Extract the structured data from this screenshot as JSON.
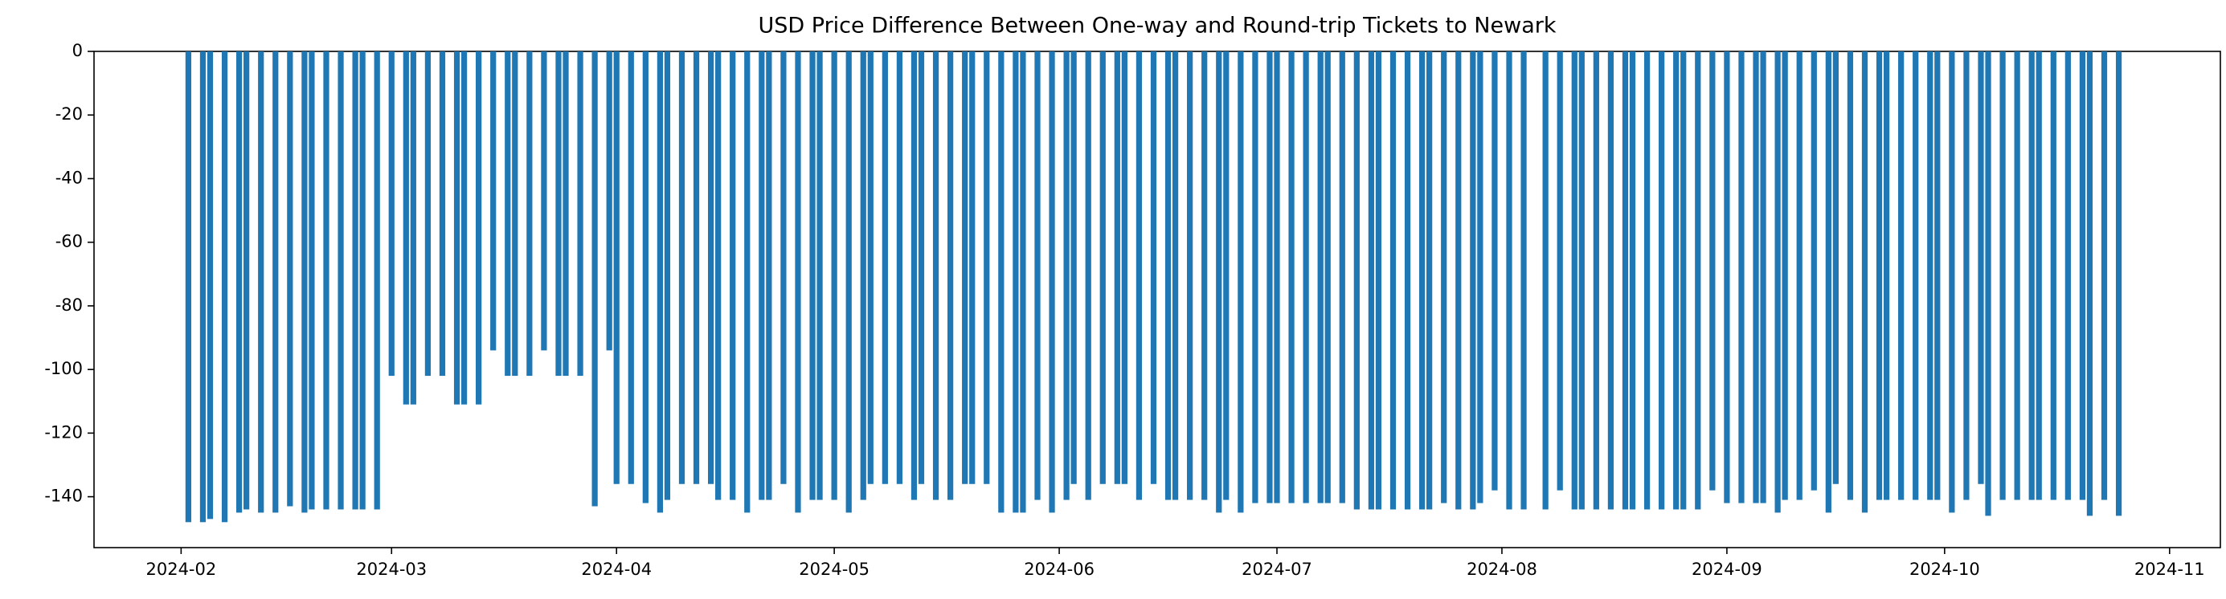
{
  "chart_data": {
    "type": "bar",
    "title": "USD Price Difference Between One-way and Round-trip Tickets to Newark",
    "color": "#1f77b4",
    "x": [
      "2024-02-02",
      "2024-02-04",
      "2024-02-05",
      "2024-02-07",
      "2024-02-09",
      "2024-02-10",
      "2024-02-12",
      "2024-02-14",
      "2024-02-16",
      "2024-02-18",
      "2024-02-19",
      "2024-02-21",
      "2024-02-23",
      "2024-02-25",
      "2024-02-26",
      "2024-02-28",
      "2024-03-01",
      "2024-03-03",
      "2024-03-04",
      "2024-03-06",
      "2024-03-08",
      "2024-03-10",
      "2024-03-11",
      "2024-03-13",
      "2024-03-15",
      "2024-03-17",
      "2024-03-18",
      "2024-03-20",
      "2024-03-22",
      "2024-03-24",
      "2024-03-25",
      "2024-03-27",
      "2024-03-29",
      "2024-03-31",
      "2024-04-01",
      "2024-04-03",
      "2024-04-05",
      "2024-04-07",
      "2024-04-08",
      "2024-04-10",
      "2024-04-12",
      "2024-04-14",
      "2024-04-15",
      "2024-04-17",
      "2024-04-19",
      "2024-04-21",
      "2024-04-22",
      "2024-04-24",
      "2024-04-26",
      "2024-04-28",
      "2024-04-29",
      "2024-05-01",
      "2024-05-03",
      "2024-05-05",
      "2024-05-06",
      "2024-05-08",
      "2024-05-10",
      "2024-05-12",
      "2024-05-13",
      "2024-05-15",
      "2024-05-17",
      "2024-05-19",
      "2024-05-20",
      "2024-05-22",
      "2024-05-24",
      "2024-05-26",
      "2024-05-27",
      "2024-05-29",
      "2024-05-31",
      "2024-06-02",
      "2024-06-03",
      "2024-06-05",
      "2024-06-07",
      "2024-06-09",
      "2024-06-10",
      "2024-06-12",
      "2024-06-14",
      "2024-06-16",
      "2024-06-17",
      "2024-06-19",
      "2024-06-21",
      "2024-06-23",
      "2024-06-24",
      "2024-06-26",
      "2024-06-28",
      "2024-06-30",
      "2024-07-01",
      "2024-07-03",
      "2024-07-05",
      "2024-07-07",
      "2024-07-08",
      "2024-07-10",
      "2024-07-12",
      "2024-07-14",
      "2024-07-15",
      "2024-07-17",
      "2024-07-19",
      "2024-07-21",
      "2024-07-22",
      "2024-07-24",
      "2024-07-26",
      "2024-07-28",
      "2024-07-29",
      "2024-07-31",
      "2024-08-02",
      "2024-08-04",
      "2024-08-07",
      "2024-08-09",
      "2024-08-11",
      "2024-08-12",
      "2024-08-14",
      "2024-08-16",
      "2024-08-18",
      "2024-08-19",
      "2024-08-21",
      "2024-08-23",
      "2024-08-25",
      "2024-08-26",
      "2024-08-28",
      "2024-08-30",
      "2024-09-01",
      "2024-09-03",
      "2024-09-05",
      "2024-09-06",
      "2024-09-08",
      "2024-09-09",
      "2024-09-11",
      "2024-09-13",
      "2024-09-15",
      "2024-09-16",
      "2024-09-18",
      "2024-09-20",
      "2024-09-22",
      "2024-09-23",
      "2024-09-25",
      "2024-09-27",
      "2024-09-29",
      "2024-09-30",
      "2024-10-02",
      "2024-10-04",
      "2024-10-06",
      "2024-10-07",
      "2024-10-09",
      "2024-10-11",
      "2024-10-13",
      "2024-10-14",
      "2024-10-16",
      "2024-10-18",
      "2024-10-20",
      "2024-10-21",
      "2024-10-23",
      "2024-10-25"
    ],
    "values": [
      -148,
      -148,
      -147,
      -148,
      -145,
      -144,
      -145,
      -145,
      -143,
      -145,
      -144,
      -144,
      -144,
      -144,
      -144,
      -144,
      -102,
      -111,
      -111,
      -102,
      -102,
      -111,
      -111,
      -111,
      -94,
      -102,
      -102,
      -102,
      -94,
      -102,
      -102,
      -102,
      -143,
      -94,
      -136,
      -136,
      -142,
      -145,
      -141,
      -136,
      -136,
      -136,
      -141,
      -141,
      -145,
      -141,
      -141,
      -136,
      -145,
      -141,
      -141,
      -141,
      -145,
      -141,
      -136,
      -136,
      -136,
      -141,
      -136,
      -141,
      -141,
      -136,
      -136,
      -136,
      -145,
      -145,
      -145,
      -141,
      -145,
      -141,
      -136,
      -141,
      -136,
      -136,
      -136,
      -141,
      -136,
      -141,
      -141,
      -141,
      -141,
      -145,
      -141,
      -145,
      -142,
      -142,
      -142,
      -142,
      -142,
      -142,
      -142,
      -142,
      -144,
      -144,
      -144,
      -144,
      -144,
      -144,
      -144,
      -142,
      -144,
      -144,
      -142,
      -138,
      -144,
      -144,
      -144,
      -138,
      -144,
      -144,
      -144,
      -144,
      -144,
      -144,
      -144,
      -144,
      -144,
      -144,
      -144,
      -138,
      -142,
      -142,
      -142,
      -142,
      -145,
      -141,
      -141,
      -138,
      -145,
      -136,
      -141,
      -145,
      -141,
      -141,
      -141,
      -141,
      -141,
      -141,
      -145,
      -141,
      -136,
      -146,
      -141,
      -141,
      -141,
      -141,
      -141,
      -141,
      -141,
      -146,
      -141,
      -146
    ],
    "xlim": [
      "2024-01-20",
      "2024-11-08"
    ],
    "xticks": [
      {
        "value": "2024-02-01",
        "label": "2024-02"
      },
      {
        "value": "2024-03-01",
        "label": "2024-03"
      },
      {
        "value": "2024-04-01",
        "label": "2024-04"
      },
      {
        "value": "2024-05-01",
        "label": "2024-05"
      },
      {
        "value": "2024-06-01",
        "label": "2024-06"
      },
      {
        "value": "2024-07-01",
        "label": "2024-07"
      },
      {
        "value": "2024-08-01",
        "label": "2024-08"
      },
      {
        "value": "2024-09-01",
        "label": "2024-09"
      },
      {
        "value": "2024-10-01",
        "label": "2024-10"
      },
      {
        "value": "2024-11-01",
        "label": "2024-11"
      }
    ],
    "ylim": [
      -156,
      0
    ],
    "yticks": [
      0,
      -20,
      -40,
      -60,
      -80,
      -100,
      -120,
      -140
    ]
  }
}
